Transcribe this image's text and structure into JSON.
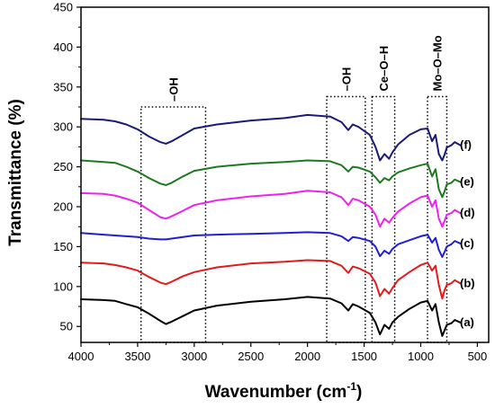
{
  "chart_data": {
    "type": "line",
    "xlabel": "Wavenumber (cm",
    "xlabel_superscript": "-1",
    "xlabel_suffix": ")",
    "ylabel": "Transmittance (%)",
    "xlim": [
      4000,
      400
    ],
    "ylim": [
      30,
      450
    ],
    "x_ticks": [
      4000,
      3500,
      3000,
      2500,
      2000,
      1500,
      1000,
      500
    ],
    "y_ticks": [
      50,
      100,
      150,
      200,
      250,
      300,
      350,
      400,
      450
    ],
    "grid": false,
    "line_colors": {
      "a": "#000000",
      "b": "#e31a1c",
      "c": "#1f1fd6",
      "d": "#ee22ee",
      "e": "#1e7a1e",
      "f": "#1a1a78"
    },
    "series": [
      {
        "name": "(a)",
        "color": "#000000",
        "baseline": 84,
        "points": [
          [
            4000,
            84
          ],
          [
            3800,
            83
          ],
          [
            3700,
            82
          ],
          [
            3600,
            78
          ],
          [
            3500,
            74
          ],
          [
            3400,
            66
          ],
          [
            3300,
            57
          ],
          [
            3250,
            53
          ],
          [
            3200,
            56
          ],
          [
            3100,
            63
          ],
          [
            3000,
            70
          ],
          [
            2800,
            76
          ],
          [
            2500,
            81
          ],
          [
            2200,
            84
          ],
          [
            2000,
            87
          ],
          [
            1800,
            85
          ],
          [
            1700,
            79
          ],
          [
            1640,
            70
          ],
          [
            1600,
            78
          ],
          [
            1550,
            75
          ],
          [
            1450,
            67
          ],
          [
            1400,
            55
          ],
          [
            1360,
            40
          ],
          [
            1320,
            52
          ],
          [
            1280,
            47
          ],
          [
            1250,
            55
          ],
          [
            1200,
            62
          ],
          [
            1100,
            72
          ],
          [
            1000,
            80
          ],
          [
            940,
            82
          ],
          [
            900,
            70
          ],
          [
            870,
            78
          ],
          [
            840,
            55
          ],
          [
            810,
            38
          ],
          [
            790,
            45
          ],
          [
            770,
            52
          ],
          [
            730,
            54
          ],
          [
            700,
            58
          ],
          [
            650,
            55
          ]
        ]
      },
      {
        "name": "(b)",
        "color": "#e31a1c",
        "baseline": 130,
        "points": [
          [
            4000,
            130
          ],
          [
            3800,
            129
          ],
          [
            3700,
            127
          ],
          [
            3600,
            124
          ],
          [
            3500,
            120
          ],
          [
            3400,
            112
          ],
          [
            3300,
            105
          ],
          [
            3250,
            103
          ],
          [
            3200,
            106
          ],
          [
            3100,
            113
          ],
          [
            3000,
            118
          ],
          [
            2800,
            124
          ],
          [
            2500,
            129
          ],
          [
            2200,
            131
          ],
          [
            2000,
            133
          ],
          [
            1800,
            132
          ],
          [
            1700,
            126
          ],
          [
            1640,
            117
          ],
          [
            1600,
            125
          ],
          [
            1550,
            123
          ],
          [
            1450,
            116
          ],
          [
            1400,
            105
          ],
          [
            1360,
            88
          ],
          [
            1320,
            97
          ],
          [
            1280,
            91
          ],
          [
            1250,
            98
          ],
          [
            1200,
            108
          ],
          [
            1100,
            118
          ],
          [
            1000,
            127
          ],
          [
            940,
            130
          ],
          [
            900,
            120
          ],
          [
            870,
            126
          ],
          [
            840,
            102
          ],
          [
            810,
            85
          ],
          [
            790,
            95
          ],
          [
            770,
            102
          ],
          [
            730,
            104
          ],
          [
            700,
            108
          ],
          [
            650,
            104
          ]
        ]
      },
      {
        "name": "(c)",
        "color": "#1f1fd6",
        "baseline": 167,
        "points": [
          [
            4000,
            167
          ],
          [
            3800,
            165
          ],
          [
            3700,
            164
          ],
          [
            3600,
            163
          ],
          [
            3500,
            162
          ],
          [
            3400,
            160
          ],
          [
            3300,
            159
          ],
          [
            3250,
            159
          ],
          [
            3200,
            160
          ],
          [
            3100,
            162
          ],
          [
            3000,
            164
          ],
          [
            2800,
            165
          ],
          [
            2500,
            166
          ],
          [
            2200,
            167
          ],
          [
            2000,
            168
          ],
          [
            1800,
            167
          ],
          [
            1700,
            163
          ],
          [
            1640,
            157
          ],
          [
            1600,
            162
          ],
          [
            1550,
            161
          ],
          [
            1450,
            157
          ],
          [
            1400,
            150
          ],
          [
            1360,
            138
          ],
          [
            1320,
            145
          ],
          [
            1280,
            141
          ],
          [
            1250,
            147
          ],
          [
            1200,
            153
          ],
          [
            1100,
            158
          ],
          [
            1000,
            163
          ],
          [
            940,
            165
          ],
          [
            900,
            155
          ],
          [
            870,
            161
          ],
          [
            840,
            146
          ],
          [
            810,
            137
          ],
          [
            790,
            143
          ],
          [
            770,
            150
          ],
          [
            730,
            153
          ],
          [
            700,
            157
          ],
          [
            650,
            154
          ]
        ]
      },
      {
        "name": "(d)",
        "color": "#ee22ee",
        "baseline": 217,
        "points": [
          [
            4000,
            217
          ],
          [
            3800,
            216
          ],
          [
            3700,
            214
          ],
          [
            3600,
            210
          ],
          [
            3500,
            205
          ],
          [
            3400,
            196
          ],
          [
            3300,
            187
          ],
          [
            3250,
            185
          ],
          [
            3200,
            188
          ],
          [
            3100,
            195
          ],
          [
            3000,
            202
          ],
          [
            2800,
            208
          ],
          [
            2500,
            213
          ],
          [
            2200,
            216
          ],
          [
            2000,
            220
          ],
          [
            1800,
            218
          ],
          [
            1700,
            212
          ],
          [
            1640,
            202
          ],
          [
            1600,
            210
          ],
          [
            1550,
            208
          ],
          [
            1450,
            200
          ],
          [
            1400,
            190
          ],
          [
            1360,
            175
          ],
          [
            1320,
            185
          ],
          [
            1280,
            180
          ],
          [
            1250,
            186
          ],
          [
            1200,
            194
          ],
          [
            1100,
            204
          ],
          [
            1000,
            212
          ],
          [
            940,
            214
          ],
          [
            900,
            200
          ],
          [
            870,
            208
          ],
          [
            840,
            185
          ],
          [
            810,
            175
          ],
          [
            790,
            182
          ],
          [
            770,
            190
          ],
          [
            730,
            192
          ],
          [
            700,
            196
          ],
          [
            650,
            192
          ]
        ]
      },
      {
        "name": "(e)",
        "color": "#1e7a1e",
        "baseline": 258,
        "points": [
          [
            4000,
            258
          ],
          [
            3800,
            256
          ],
          [
            3700,
            255
          ],
          [
            3600,
            250
          ],
          [
            3500,
            244
          ],
          [
            3400,
            236
          ],
          [
            3300,
            229
          ],
          [
            3250,
            227
          ],
          [
            3200,
            230
          ],
          [
            3100,
            238
          ],
          [
            3000,
            245
          ],
          [
            2800,
            250
          ],
          [
            2500,
            254
          ],
          [
            2200,
            256
          ],
          [
            2000,
            258
          ],
          [
            1800,
            257
          ],
          [
            1700,
            252
          ],
          [
            1640,
            244
          ],
          [
            1600,
            250
          ],
          [
            1550,
            249
          ],
          [
            1450,
            244
          ],
          [
            1400,
            237
          ],
          [
            1360,
            230
          ],
          [
            1320,
            236
          ],
          [
            1280,
            233
          ],
          [
            1250,
            238
          ],
          [
            1200,
            243
          ],
          [
            1100,
            248
          ],
          [
            1000,
            252
          ],
          [
            940,
            254
          ],
          [
            900,
            238
          ],
          [
            870,
            247
          ],
          [
            840,
            222
          ],
          [
            810,
            212
          ],
          [
            790,
            219
          ],
          [
            770,
            228
          ],
          [
            730,
            230
          ],
          [
            700,
            234
          ],
          [
            650,
            231
          ]
        ]
      },
      {
        "name": "(f)",
        "color": "#1a1a78",
        "baseline": 310,
        "points": [
          [
            4000,
            310
          ],
          [
            3800,
            309
          ],
          [
            3700,
            307
          ],
          [
            3600,
            303
          ],
          [
            3500,
            297
          ],
          [
            3400,
            288
          ],
          [
            3300,
            281
          ],
          [
            3250,
            279
          ],
          [
            3200,
            282
          ],
          [
            3100,
            290
          ],
          [
            3000,
            298
          ],
          [
            2800,
            303
          ],
          [
            2500,
            308
          ],
          [
            2200,
            311
          ],
          [
            2000,
            315
          ],
          [
            1800,
            313
          ],
          [
            1700,
            306
          ],
          [
            1640,
            296
          ],
          [
            1600,
            303
          ],
          [
            1550,
            300
          ],
          [
            1450,
            290
          ],
          [
            1400,
            275
          ],
          [
            1360,
            258
          ],
          [
            1320,
            266
          ],
          [
            1280,
            260
          ],
          [
            1250,
            268
          ],
          [
            1200,
            278
          ],
          [
            1100,
            290
          ],
          [
            1000,
            297
          ],
          [
            940,
            298
          ],
          [
            900,
            282
          ],
          [
            870,
            290
          ],
          [
            840,
            266
          ],
          [
            810,
            258
          ],
          [
            790,
            265
          ],
          [
            770,
            274
          ],
          [
            730,
            277
          ],
          [
            700,
            281
          ],
          [
            650,
            277
          ]
        ]
      }
    ],
    "series_labels": [
      "(a)",
      "(b)",
      "(c)",
      "(d)",
      "(e)",
      "(f)"
    ],
    "annotations": [
      {
        "label": "–OH",
        "x_from": 3470,
        "x_to": 2900,
        "y_top": 325,
        "rotated": true
      },
      {
        "label": "–OH",
        "x_from": 1830,
        "x_to": 1490,
        "y_top": 338,
        "rotated": true
      },
      {
        "label": "Ce–O–H",
        "x_from": 1430,
        "x_to": 1230,
        "y_top": 338,
        "rotated": true
      },
      {
        "label": "Mo–O–Mo",
        "x_from": 940,
        "x_to": 770,
        "y_top": 338,
        "rotated": true
      }
    ]
  }
}
